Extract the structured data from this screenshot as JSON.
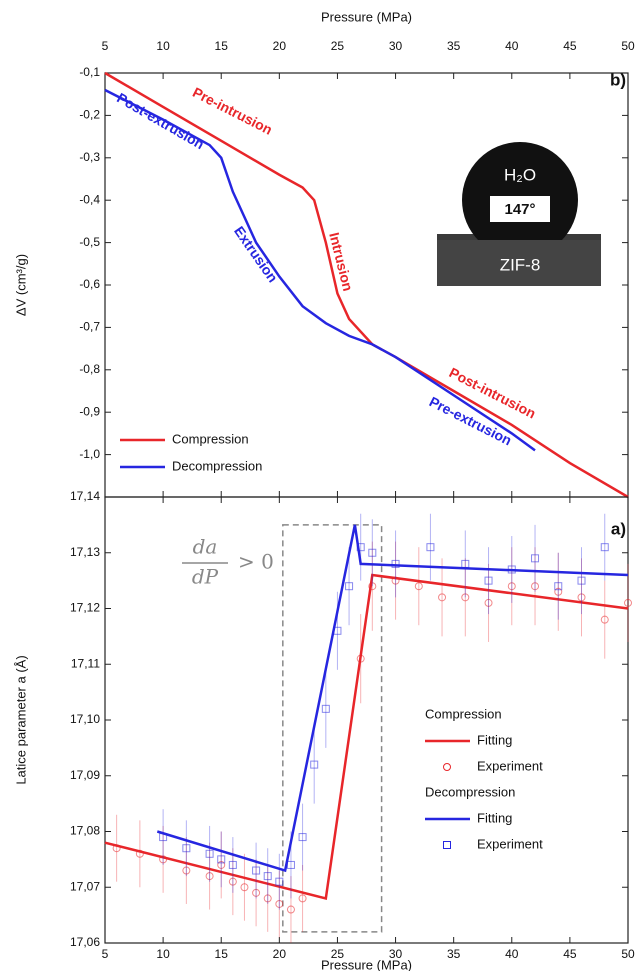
{
  "chart_data": [
    {
      "type": "line",
      "panel_label": "b)",
      "x_label": "Pressure (MPa)",
      "y_label": "ΔV (cm³/g)",
      "xlim": [
        5,
        50
      ],
      "xticks": [
        5,
        10,
        15,
        20,
        25,
        30,
        35,
        40,
        45,
        50
      ],
      "ylim": [
        -1.1,
        -0.1
      ],
      "yticks": [
        {
          "value": -0.1,
          "label": "-0,1"
        },
        {
          "value": -0.2,
          "label": "-0,2"
        },
        {
          "value": -0.3,
          "label": "-0,3"
        },
        {
          "value": -0.4,
          "label": "-0,4"
        },
        {
          "value": -0.5,
          "label": "-0,5"
        },
        {
          "value": -0.6,
          "label": "-0,6"
        },
        {
          "value": -0.7,
          "label": "-0,7"
        },
        {
          "value": -0.8,
          "label": "-0,8"
        },
        {
          "value": -0.9,
          "label": "-0,9"
        },
        {
          "value": -1.0,
          "label": "-1,0"
        }
      ],
      "series": [
        {
          "name": "Compression",
          "color": "#e8262a",
          "x": [
            5,
            10,
            15,
            20,
            22,
            23,
            24,
            25,
            26,
            28,
            30,
            35,
            40,
            45,
            50
          ],
          "values": [
            -0.1,
            -0.18,
            -0.26,
            -0.34,
            -0.37,
            -0.4,
            -0.5,
            -0.62,
            -0.68,
            -0.74,
            -0.77,
            -0.85,
            -0.93,
            -1.02,
            -1.1
          ]
        },
        {
          "name": "Decompression",
          "color": "#2626e0",
          "x": [
            5,
            10,
            14,
            15,
            16,
            17,
            18,
            20,
            22,
            24,
            26,
            28,
            30,
            35,
            40,
            42
          ],
          "values": [
            -0.14,
            -0.21,
            -0.27,
            -0.3,
            -0.38,
            -0.44,
            -0.5,
            -0.58,
            -0.65,
            -0.69,
            -0.72,
            -0.74,
            -0.77,
            -0.86,
            -0.95,
            -0.99
          ]
        }
      ],
      "annotations": [
        {
          "text": "Pre-intrusion",
          "color": "#e8262a"
        },
        {
          "text": "Post-extrusion",
          "color": "#2626e0"
        },
        {
          "text": "Intrusion",
          "color": "#e8262a"
        },
        {
          "text": "Extrusion",
          "color": "#2626e0"
        },
        {
          "text": "Post-intrusion",
          "color": "#e8262a"
        },
        {
          "text": "Pre-extrusion",
          "color": "#2626e0"
        }
      ],
      "inset": [
        "H₂O",
        "147°",
        "ZIF-8"
      ]
    },
    {
      "type": "line",
      "panel_label": "a)",
      "x_label": "Pressure (MPa)",
      "y_label": "Latice parameter a (Å)",
      "xlim": [
        5,
        50
      ],
      "xticks": [
        5,
        10,
        15,
        20,
        25,
        30,
        35,
        40,
        45,
        50
      ],
      "ylim": [
        17.06,
        17.14
      ],
      "yticks": [
        {
          "value": 17.06,
          "label": "17,06"
        },
        {
          "value": 17.07,
          "label": "17,07"
        },
        {
          "value": 17.08,
          "label": "17,08"
        },
        {
          "value": 17.09,
          "label": "17,09"
        },
        {
          "value": 17.1,
          "label": "17,10"
        },
        {
          "value": 17.11,
          "label": "17,11"
        },
        {
          "value": 17.12,
          "label": "17,12"
        },
        {
          "value": 17.13,
          "label": "17,13"
        },
        {
          "value": 17.14,
          "label": "17,14"
        }
      ],
      "series": [
        {
          "name": "Fitting",
          "group": "Compression",
          "color": "#e8262a",
          "x": [
            5,
            24,
            28,
            50
          ],
          "values": [
            17.078,
            17.068,
            17.126,
            17.12
          ]
        },
        {
          "name": "Experiment",
          "group": "Compression",
          "color": "#e8262a",
          "marker": "circle",
          "x": [
            6,
            8,
            10,
            12,
            14,
            15,
            16,
            17,
            18,
            19,
            20,
            21,
            22,
            27,
            28,
            30,
            32,
            34,
            36,
            38,
            40,
            42,
            44,
            46,
            48,
            50
          ],
          "values": [
            17.077,
            17.076,
            17.075,
            17.073,
            17.072,
            17.074,
            17.071,
            17.07,
            17.069,
            17.068,
            17.067,
            17.066,
            17.068,
            17.111,
            17.124,
            17.125,
            17.124,
            17.122,
            17.122,
            17.121,
            17.124,
            17.124,
            17.123,
            17.122,
            17.118,
            17.121
          ],
          "errors": [
            0.006,
            0.006,
            0.006,
            0.006,
            0.006,
            0.006,
            0.006,
            0.006,
            0.006,
            0.006,
            0.006,
            0.006,
            0.006,
            0.008,
            0.008,
            0.007,
            0.007,
            0.007,
            0.007,
            0.007,
            0.007,
            0.007,
            0.007,
            0.007,
            0.007,
            0.007
          ]
        },
        {
          "name": "Fitting",
          "group": "Decompression",
          "color": "#2626e0",
          "x": [
            9.5,
            20.5,
            26.5,
            27,
            50
          ],
          "values": [
            17.08,
            17.073,
            17.135,
            17.128,
            17.126
          ]
        },
        {
          "name": "Experiment",
          "group": "Decompression",
          "color": "#2626e0",
          "marker": "square",
          "x": [
            10,
            12,
            14,
            15,
            16,
            18,
            19,
            20,
            21,
            22,
            23,
            24,
            25,
            26,
            27,
            28,
            30,
            33,
            36,
            38,
            40,
            42,
            44,
            46,
            48
          ],
          "values": [
            17.079,
            17.077,
            17.076,
            17.075,
            17.074,
            17.073,
            17.072,
            17.071,
            17.074,
            17.079,
            17.092,
            17.102,
            17.116,
            17.124,
            17.131,
            17.13,
            17.128,
            17.131,
            17.128,
            17.125,
            17.127,
            17.129,
            17.124,
            17.125,
            17.131
          ],
          "errors": [
            0.005,
            0.005,
            0.005,
            0.005,
            0.005,
            0.005,
            0.005,
            0.005,
            0.006,
            0.006,
            0.007,
            0.007,
            0.007,
            0.007,
            0.006,
            0.006,
            0.006,
            0.006,
            0.006,
            0.006,
            0.006,
            0.006,
            0.006,
            0.006,
            0.006
          ]
        }
      ],
      "highlight": {
        "xlim": [
          20.3,
          28.8
        ],
        "ylim": [
          17.062,
          17.135
        ]
      },
      "formula": {
        "numerator": "da",
        "denominator": "dP",
        "relation": "> 0"
      }
    }
  ]
}
